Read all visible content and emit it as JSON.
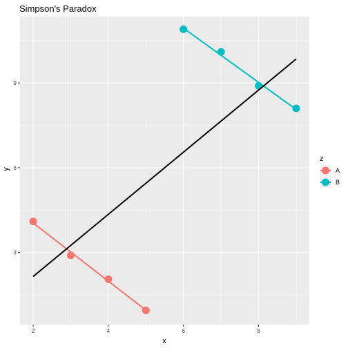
{
  "chart_data": {
    "type": "scatter",
    "title": "Simpson's Paradox",
    "xlabel": "x",
    "ylabel": "y",
    "xlim": [
      1.65,
      9.35
    ],
    "ylim": [
      0.45,
      11.35
    ],
    "x_ticks": [
      2,
      4,
      6,
      8
    ],
    "y_ticks": [
      3,
      6,
      9
    ],
    "grid": true,
    "legend": {
      "title": "z",
      "position": "right",
      "entries": [
        {
          "name": "A",
          "color": "#F8766D"
        },
        {
          "name": "B",
          "color": "#00BFC4"
        }
      ]
    },
    "series": [
      {
        "name": "A",
        "color": "#F8766D",
        "x": [
          2,
          3,
          4,
          5
        ],
        "y": [
          4.1,
          2.9,
          2.05,
          0.95
        ]
      },
      {
        "name": "B",
        "color": "#00BFC4",
        "x": [
          6,
          7,
          8,
          9
        ],
        "y": [
          10.9,
          10.1,
          8.9,
          8.1
        ]
      }
    ],
    "overall_fit": {
      "color": "#000000",
      "x": [
        2,
        9
      ],
      "y": [
        2.15,
        9.85
      ]
    }
  }
}
